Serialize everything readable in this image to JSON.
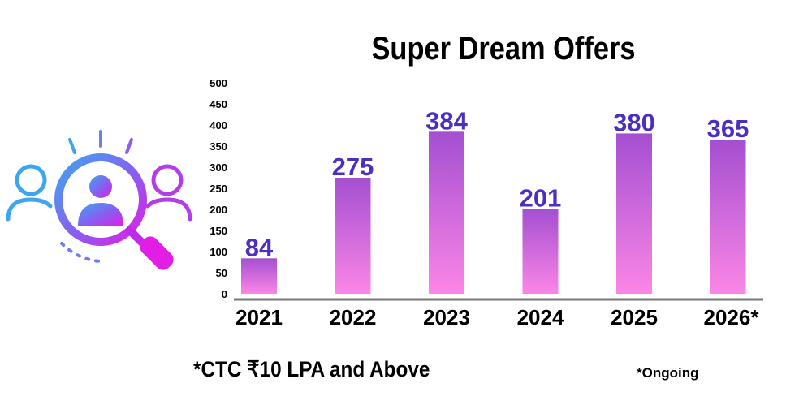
{
  "chart_data": {
    "type": "bar",
    "title": "Super Dream Offers",
    "categories": [
      "2021",
      "2022",
      "2023",
      "2024",
      "2025",
      "2026*"
    ],
    "values": [
      84,
      275,
      384,
      201,
      380,
      365
    ],
    "data_labels": [
      "84",
      "275",
      "384",
      "201",
      "380",
      "365"
    ],
    "yticks": [
      "0",
      "50",
      "100",
      "150",
      "200",
      "250",
      "300",
      "350",
      "400",
      "450",
      "500"
    ],
    "ylim": [
      0,
      500
    ],
    "xlabel": "",
    "ylabel": "",
    "grid": false,
    "bar_gradient_top": "#a44fd1",
    "bar_gradient_bottom": "#fb86e6",
    "label_color": "#4b2fc2"
  },
  "footnote": "*CTC ₹10 LPA and Above",
  "ongoing_note": "*Ongoing",
  "icon": "people-search-icon"
}
